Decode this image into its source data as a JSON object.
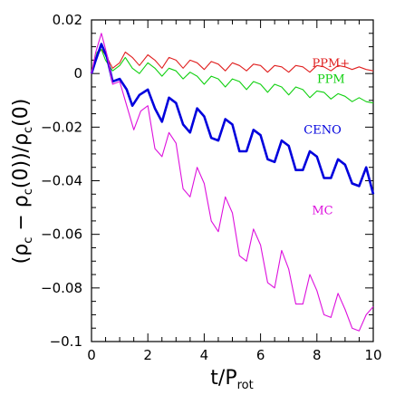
{
  "chart_data": {
    "type": "line",
    "xlabel": "t/P",
    "xlabel_subscript": "rot",
    "ylabel_parts": {
      "open": "(ρ",
      "sub_c1": "c",
      "mid": " − ρ",
      "sub_c2": "c",
      "arg0": "(0))/ρ",
      "sub_c3": "c",
      "close": "(0)"
    },
    "xlim": [
      0,
      10
    ],
    "ylim": [
      -0.1,
      0.02
    ],
    "x_ticks": [
      0,
      2,
      4,
      6,
      8,
      10
    ],
    "x_tick_labels": [
      "0",
      "2",
      "4",
      "6",
      "8",
      "10"
    ],
    "y_ticks": [
      -0.1,
      -0.08,
      -0.06,
      -0.04,
      -0.02,
      0,
      0.02
    ],
    "y_tick_labels": [
      "−0.1",
      "−0.08",
      "−0.06",
      "−0.04",
      "−0.02",
      "0",
      "0.02"
    ],
    "grid": false,
    "series": [
      {
        "name": "PPM+",
        "color": "#e02020",
        "x": [
          0,
          0.2,
          0.35,
          0.5,
          0.75,
          1.0,
          1.2,
          1.45,
          1.7,
          2.0,
          2.25,
          2.5,
          2.75,
          3.0,
          3.25,
          3.5,
          3.75,
          4.0,
          4.25,
          4.5,
          4.75,
          5.0,
          5.25,
          5.5,
          5.75,
          6.0,
          6.25,
          6.5,
          6.75,
          7.0,
          7.25,
          7.5,
          7.75,
          8.0,
          8.25,
          8.5,
          8.75,
          9.0,
          9.25,
          9.5,
          9.75,
          10.0
        ],
        "y": [
          0,
          0.007,
          0.009,
          0.007,
          0.002,
          0.004,
          0.008,
          0.006,
          0.003,
          0.007,
          0.005,
          0.002,
          0.006,
          0.005,
          0.002,
          0.005,
          0.004,
          0.0015,
          0.0045,
          0.0035,
          0.001,
          0.004,
          0.003,
          0.001,
          0.0035,
          0.003,
          0.0005,
          0.003,
          0.0025,
          0.0005,
          0.003,
          0.0025,
          0.0005,
          0.003,
          0.0025,
          0.001,
          0.003,
          0.0025,
          0.0015,
          0.0025,
          0.0015,
          0.001
        ]
      },
      {
        "name": "PPM",
        "color": "#10d010",
        "x": [
          0,
          0.2,
          0.35,
          0.5,
          0.75,
          1.0,
          1.2,
          1.45,
          1.7,
          2.0,
          2.25,
          2.5,
          2.75,
          3.0,
          3.25,
          3.5,
          3.75,
          4.0,
          4.25,
          4.5,
          4.75,
          5.0,
          5.25,
          5.5,
          5.75,
          6.0,
          6.25,
          6.5,
          6.75,
          7.0,
          7.25,
          7.5,
          7.75,
          8.0,
          8.25,
          8.5,
          8.75,
          9.0,
          9.25,
          9.5,
          9.75,
          10.0
        ],
        "y": [
          0,
          0.008,
          0.009,
          0.005,
          0.001,
          0.003,
          0.006,
          0.002,
          0.0,
          0.004,
          0.002,
          -0.001,
          0.002,
          0.001,
          -0.002,
          0.0005,
          -0.001,
          -0.004,
          -0.001,
          -0.002,
          -0.005,
          -0.002,
          -0.003,
          -0.006,
          -0.003,
          -0.004,
          -0.007,
          -0.004,
          -0.005,
          -0.008,
          -0.005,
          -0.006,
          -0.009,
          -0.0065,
          -0.007,
          -0.0095,
          -0.0075,
          -0.0085,
          -0.0105,
          -0.009,
          -0.0105,
          -0.011
        ]
      },
      {
        "name": "CENO",
        "color": "#0000dd",
        "x": [
          0,
          0.15,
          0.35,
          0.55,
          0.75,
          1.0,
          1.25,
          1.45,
          1.7,
          2.0,
          2.25,
          2.5,
          2.75,
          3.0,
          3.25,
          3.5,
          3.75,
          4.0,
          4.25,
          4.5,
          4.75,
          5.0,
          5.25,
          5.5,
          5.75,
          6.0,
          6.25,
          6.5,
          6.75,
          7.0,
          7.25,
          7.5,
          7.75,
          8.0,
          8.25,
          8.5,
          8.75,
          9.0,
          9.25,
          9.5,
          9.75,
          10.0
        ],
        "y": [
          0,
          0.005,
          0.011,
          0.006,
          -0.003,
          -0.002,
          -0.006,
          -0.012,
          -0.008,
          -0.006,
          -0.013,
          -0.018,
          -0.009,
          -0.011,
          -0.019,
          -0.022,
          -0.013,
          -0.016,
          -0.024,
          -0.025,
          -0.017,
          -0.019,
          -0.029,
          -0.029,
          -0.021,
          -0.023,
          -0.032,
          -0.033,
          -0.025,
          -0.027,
          -0.036,
          -0.036,
          -0.029,
          -0.031,
          -0.039,
          -0.039,
          -0.032,
          -0.034,
          -0.041,
          -0.042,
          -0.035,
          -0.045
        ]
      },
      {
        "name": "MC",
        "color": "#dd10dd",
        "x": [
          0,
          0.15,
          0.35,
          0.55,
          0.75,
          1.0,
          1.25,
          1.5,
          1.75,
          2.0,
          2.25,
          2.5,
          2.75,
          3.0,
          3.25,
          3.5,
          3.75,
          4.0,
          4.25,
          4.5,
          4.75,
          5.0,
          5.25,
          5.5,
          5.75,
          6.0,
          6.25,
          6.5,
          6.75,
          7.0,
          7.25,
          7.5,
          7.75,
          8.0,
          8.25,
          8.5,
          8.75,
          9.0,
          9.25,
          9.5,
          9.75,
          10.0
        ],
        "y": [
          0,
          0.008,
          0.015,
          0.007,
          -0.004,
          -0.003,
          -0.012,
          -0.021,
          -0.014,
          -0.012,
          -0.028,
          -0.031,
          -0.022,
          -0.026,
          -0.043,
          -0.046,
          -0.035,
          -0.041,
          -0.055,
          -0.059,
          -0.046,
          -0.052,
          -0.068,
          -0.07,
          -0.058,
          -0.064,
          -0.078,
          -0.08,
          -0.066,
          -0.073,
          -0.086,
          -0.086,
          -0.075,
          -0.081,
          -0.09,
          -0.091,
          -0.082,
          -0.088,
          -0.095,
          -0.096,
          -0.09,
          -0.087
        ]
      }
    ],
    "labels": [
      {
        "text": "PPM+",
        "series": "PPM+",
        "x": 8.5,
        "y": 0.0025
      },
      {
        "text": "PPM",
        "series": "PPM",
        "x": 8.5,
        "y": -0.0035
      },
      {
        "text": "CENO",
        "series": "CENO",
        "x": 8.2,
        "y": -0.0225
      },
      {
        "text": "MC",
        "series": "MC",
        "x": 8.2,
        "y": -0.0525
      }
    ]
  }
}
